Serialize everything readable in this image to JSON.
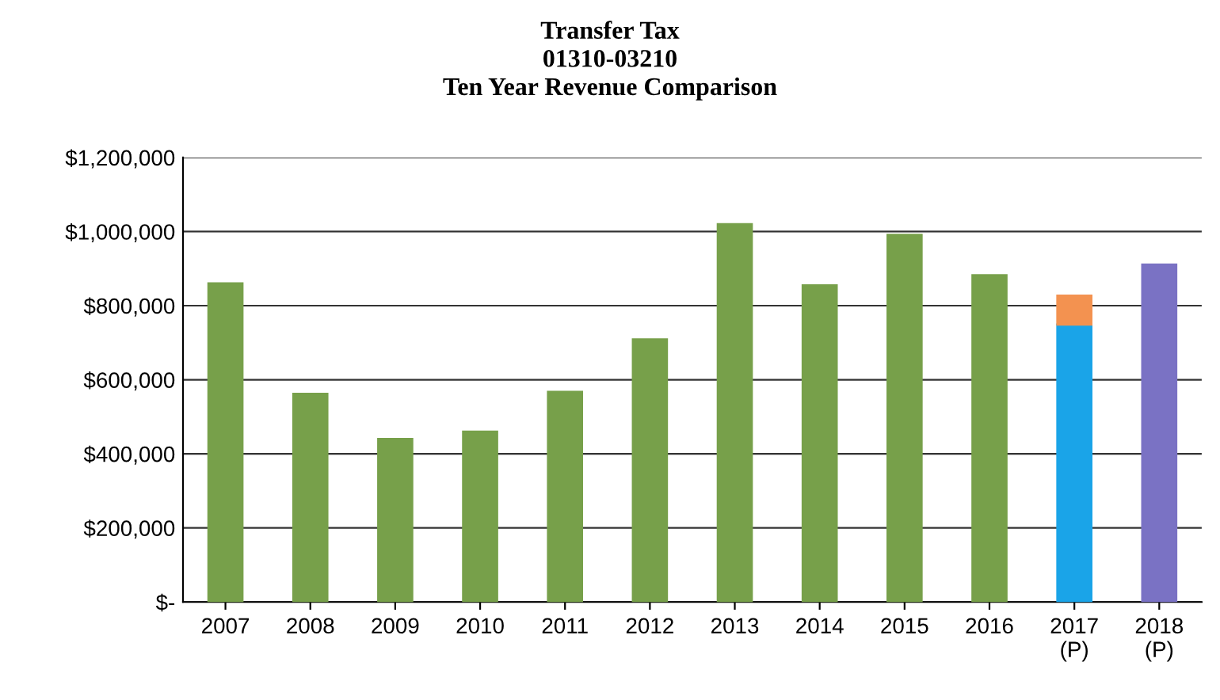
{
  "chart_data": {
    "type": "bar",
    "title": "Transfer Tax\n01310-03210\nTen Year Revenue Comparison",
    "stacked": true,
    "categories": [
      "2007",
      "2008",
      "2009",
      "2010",
      "2011",
      "2012",
      "2013",
      "2014",
      "2015",
      "2016",
      "2017\n(P)",
      "2018\n(P)"
    ],
    "series": [
      {
        "color": "#77a04a",
        "values": [
          860000,
          562000,
          440000,
          460000,
          567000,
          709000,
          1020000,
          855000,
          991000,
          882000,
          null,
          null
        ]
      },
      {
        "color": "#1aa4e8",
        "values": [
          null,
          null,
          null,
          null,
          null,
          null,
          null,
          null,
          null,
          null,
          749000,
          null
        ]
      },
      {
        "color": "#f39250",
        "values": [
          null,
          null,
          null,
          null,
          null,
          null,
          null,
          null,
          null,
          null,
          78000,
          null
        ]
      },
      {
        "color": "#7a72c4",
        "values": [
          null,
          null,
          null,
          null,
          null,
          null,
          null,
          null,
          null,
          null,
          null,
          911000
        ]
      }
    ],
    "ylim": [
      0,
      1200000
    ],
    "yticks": [
      {
        "value": 0,
        "label": "$-"
      },
      {
        "value": 200000,
        "label": "$200,000"
      },
      {
        "value": 400000,
        "label": "$400,000"
      },
      {
        "value": 600000,
        "label": "$600,000"
      },
      {
        "value": 800000,
        "label": "$800,000"
      },
      {
        "value": 1000000,
        "label": "$1,000,000"
      },
      {
        "value": 1200000,
        "label": "$1,200,000"
      }
    ],
    "grid": "y",
    "legend": false
  }
}
